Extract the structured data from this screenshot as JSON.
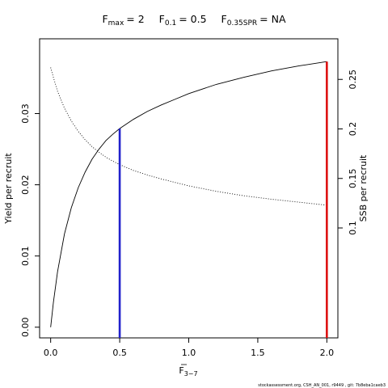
{
  "chart_data": {
    "type": "line",
    "title": {
      "fmax_sym": "F",
      "fmax_sub": "max",
      "fmax_val": "= 2",
      "f01_sym": "F",
      "f01_sub": "0.1",
      "f01_val": "= 0.5",
      "fspr_sym": "F",
      "fspr_sub": "0.35SPR",
      "fspr_val": "= NA"
    },
    "xlabel": {
      "main": "F",
      "sub": "3−7"
    },
    "ylabel": "Yield per recruit",
    "y2label": "SSB per recruit",
    "xlim": [
      -0.08,
      2.08
    ],
    "ylim": [
      -0.0015,
      0.0405
    ],
    "y2lim": [
      -0.011,
      0.291
    ],
    "xticks": [
      0.0,
      0.5,
      1.0,
      1.5,
      2.0
    ],
    "xtick_labels": [
      "0.0",
      "0.5",
      "1.0",
      "1.5",
      "2.0"
    ],
    "yticks": [
      0.0,
      0.01,
      0.02,
      0.03
    ],
    "ytick_labels": [
      "0.00",
      "0.01",
      "0.02",
      "0.03"
    ],
    "y2ticks": [
      0.1,
      0.15,
      0.2,
      0.25
    ],
    "y2tick_labels": [
      "0.1",
      "0.15",
      "0.2",
      "0.25"
    ],
    "series": [
      {
        "style": "solid",
        "axis": "left",
        "color": "#000000",
        "x": [
          0.0,
          0.02,
          0.05,
          0.1,
          0.15,
          0.2,
          0.25,
          0.3,
          0.35,
          0.4,
          0.45,
          0.5,
          0.6,
          0.7,
          0.8,
          0.9,
          1.0,
          1.2,
          1.4,
          1.6,
          1.8,
          2.0
        ],
        "y": [
          0.0,
          0.0035,
          0.0078,
          0.0131,
          0.0168,
          0.0196,
          0.0218,
          0.0236,
          0.025,
          0.0262,
          0.0271,
          0.0279,
          0.0292,
          0.0303,
          0.0312,
          0.032,
          0.0328,
          0.0341,
          0.0351,
          0.036,
          0.0367,
          0.0373
        ]
      },
      {
        "style": "dotted",
        "axis": "right",
        "color": "#000000",
        "x": [
          0.0,
          0.02,
          0.05,
          0.1,
          0.15,
          0.2,
          0.25,
          0.3,
          0.35,
          0.4,
          0.45,
          0.5,
          0.6,
          0.7,
          0.8,
          0.9,
          1.0,
          1.2,
          1.4,
          1.6,
          1.8,
          2.0
        ],
        "y": [
          0.262,
          0.252,
          0.238,
          0.221,
          0.208,
          0.1975,
          0.189,
          0.182,
          0.1765,
          0.1715,
          0.1675,
          0.164,
          0.158,
          0.1535,
          0.1495,
          0.146,
          0.1425,
          0.137,
          0.1325,
          0.129,
          0.126,
          0.123
        ]
      }
    ],
    "reference_lines": [
      {
        "x": 0.5,
        "y_top": 0.0279,
        "color": "#2222cc"
      },
      {
        "x": 2.0,
        "y_top": 0.0373,
        "color": "#dd1111"
      }
    ],
    "grid": false
  },
  "footer": "stockassessment.org, CSH_AN_001, r9449 , git: 7b8eba1caeb3"
}
